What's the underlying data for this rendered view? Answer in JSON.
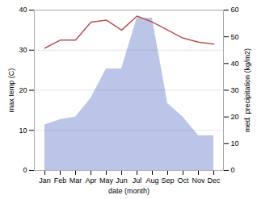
{
  "chart_data": {
    "type": "line",
    "categories": [
      "Jan",
      "Feb",
      "Mar",
      "Apr",
      "May",
      "Jun",
      "Jul",
      "Aug",
      "Sep",
      "Oct",
      "Nov",
      "Dec"
    ],
    "series": [
      {
        "type": "area",
        "color": "#bbc5e8",
        "axis": "y2",
        "values": [
          17,
          19,
          20,
          27,
          38,
          38,
          57,
          57,
          25,
          20,
          13,
          13
        ]
      },
      {
        "type": "line",
        "color": "#c0504d",
        "values": [
          30.5,
          32.5,
          32.5,
          37.0,
          37.5,
          35.0,
          38.5,
          37.0,
          35.0,
          33.0,
          32.0,
          31.5
        ]
      }
    ],
    "xlabel": "date (month)",
    "ylabel": "max temp (C)",
    "y2label": "med. precipitation (kg/m2)",
    "ylim": [
      0,
      40
    ],
    "yticks": [
      0,
      10,
      20,
      30,
      40
    ],
    "y2lim": [
      0,
      60
    ],
    "y2ticks": [
      0,
      10,
      20,
      30,
      40,
      50,
      60
    ],
    "grid": true
  }
}
